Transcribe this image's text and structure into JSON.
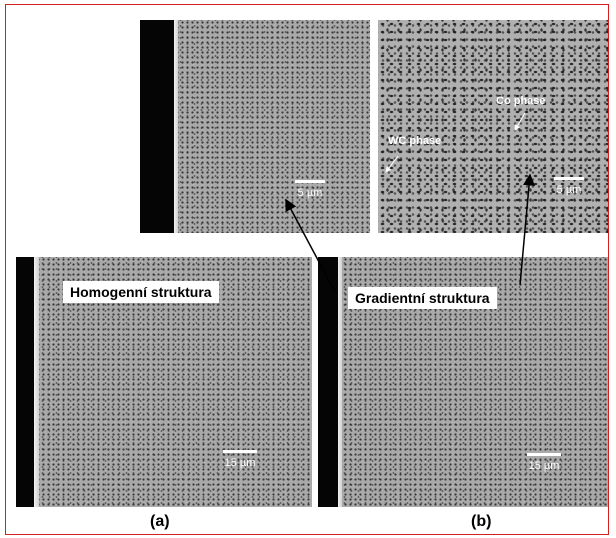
{
  "labels": {
    "homogeneous": "Homogenní struktura",
    "gradient": "Gradientní struktura",
    "wc_phase": "WC phase",
    "co_phase": "Co phase"
  },
  "scale_bars": {
    "top_left": "5 µm",
    "top_right": "5 µm",
    "bottom_left": "15 µm",
    "bottom_right": "15 µm"
  },
  "captions": {
    "a": "(a)",
    "b": "(b)"
  },
  "colors": {
    "frame": "#d62020",
    "arrow": "#000000"
  }
}
